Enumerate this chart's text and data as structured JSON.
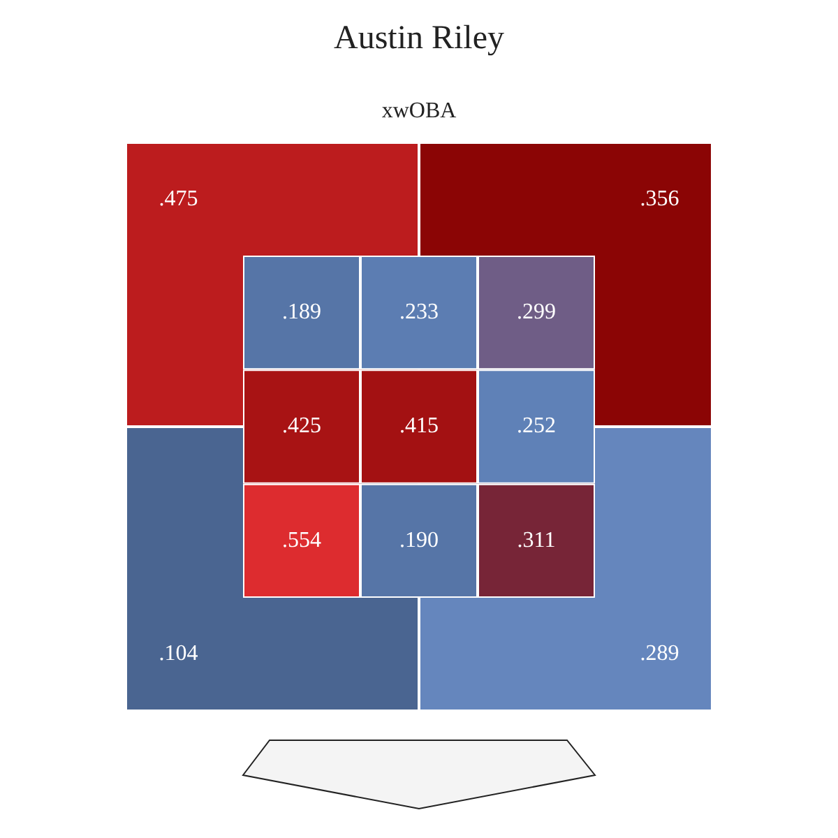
{
  "chart_data": [
    {
      "type": "heatmap",
      "title": "Austin Riley",
      "subtitle": "xwOBA",
      "categories": [
        null,
        null
      ],
      "y_categories": [
        null,
        null
      ],
      "tick_labels": false,
      "cells": [
        [
          0.475,
          0.356
        ],
        [
          0.104,
          0.289
        ]
      ],
      "cell_labels": [
        [
          ".475",
          ".356"
        ],
        [
          ".104",
          ".289"
        ]
      ]
    },
    {
      "type": "heatmap",
      "categories": [
        null,
        null,
        null
      ],
      "y_categories": [
        null,
        null,
        null
      ],
      "tick_labels": false,
      "cells": [
        [
          0.189,
          0.233,
          0.299
        ],
        [
          0.425,
          0.415,
          0.252
        ],
        [
          0.554,
          0.19,
          0.311
        ]
      ],
      "cell_labels": [
        [
          ".189",
          ".233",
          ".299"
        ],
        [
          ".425",
          ".415",
          ".252"
        ],
        [
          ".554",
          ".190",
          ".311"
        ]
      ]
    }
  ]
}
